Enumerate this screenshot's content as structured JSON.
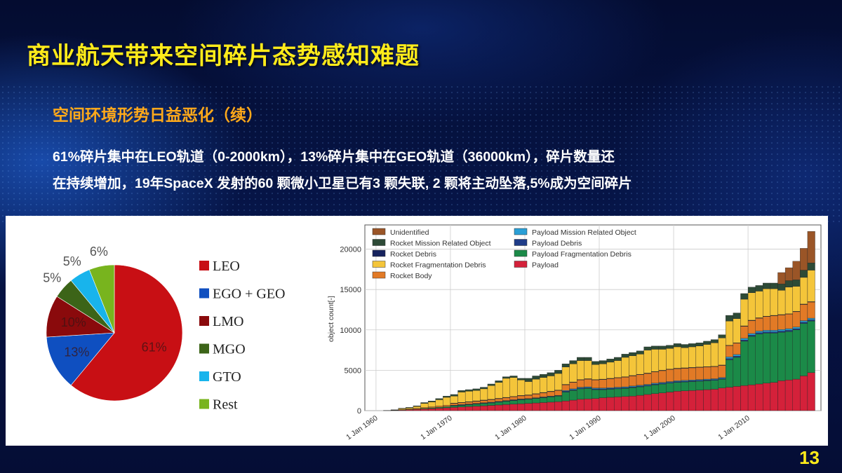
{
  "slide": {
    "title": "商业航天带来空间碎片态势感知难题",
    "subtitle": "空间环境形势日益恶化（续）",
    "body_line1": "61%碎片集中在LEO轨道（0-2000km），13%碎片集中在GEO轨道（36000km），碎片数量还",
    "body_line2": "在持续增加，19年SpaceX 发射的60 颗微小卫星已有3 颗失联, 2 颗将主动坠落,5%成为空间碎片",
    "page_number": "13",
    "colors": {
      "title": "#ffeb1a",
      "subtitle": "#ffa91a",
      "body": "#ffffff"
    }
  },
  "chart_data": [
    {
      "type": "pie",
      "slices": [
        {
          "label": "LEO",
          "value": 61,
          "data_label": "61%",
          "color": "#c80f14"
        },
        {
          "label": "EGO + GEO",
          "value": 13,
          "data_label": "13%",
          "color": "#0f4fc0"
        },
        {
          "label": "LMO",
          "value": 10,
          "data_label": "10%",
          "color": "#8a0a0c"
        },
        {
          "label": "MGO",
          "value": 5,
          "data_label": "5%",
          "color": "#3c6418"
        },
        {
          "label": "GTO",
          "value": 5,
          "data_label": "5%",
          "color": "#18b4ec"
        },
        {
          "label": "Rest",
          "value": 6,
          "data_label": "6%",
          "color": "#78b41e"
        }
      ],
      "legend": "right"
    },
    {
      "type": "bar",
      "stacked": true,
      "ylabel": "object count[-]",
      "ylim": [
        0,
        23000
      ],
      "yticks": [
        0,
        5000,
        10000,
        15000,
        20000
      ],
      "xticks": [
        "1 Jan 1960",
        "1 Jan 1970",
        "1 Jan 1980",
        "1 Jan 1990",
        "1 Jan 2000",
        "1 Jan 2010"
      ],
      "xtick_years": [
        1960,
        1970,
        1980,
        1990,
        2000,
        2010
      ],
      "xlim": [
        1958.5,
        2019.8
      ],
      "grid": true,
      "legend": "top-left",
      "legend_columns": [
        [
          "Unidentified",
          "Rocket Mission Related Object",
          "Rocket Debris",
          "Rocket Fragmentation Debris",
          "Rocket Body"
        ],
        [
          "Payload Mission Related Object",
          "Payload Debris",
          "Payload Fragmentation Debris",
          "Payload"
        ]
      ],
      "years_start": 1960,
      "series": [
        {
          "name": "Payload",
          "color": "#d4213a",
          "values": [
            0,
            10,
            30,
            60,
            100,
            150,
            200,
            250,
            300,
            350,
            400,
            450,
            500,
            550,
            600,
            650,
            700,
            750,
            800,
            850,
            900,
            950,
            1000,
            1050,
            1100,
            1200,
            1300,
            1400,
            1450,
            1500,
            1600,
            1650,
            1700,
            1750,
            1800,
            1900,
            2000,
            2100,
            2200,
            2300,
            2400,
            2450,
            2500,
            2550,
            2600,
            2650,
            2800,
            2900,
            3000,
            3100,
            3200,
            3300,
            3400,
            3500,
            3700,
            3800,
            3900,
            4300,
            4700
          ]
        },
        {
          "name": "Payload Fragmentation Debris",
          "color": "#1b8a48",
          "values": [
            0,
            0,
            0,
            20,
            30,
            50,
            80,
            100,
            120,
            150,
            180,
            200,
            220,
            250,
            280,
            300,
            350,
            400,
            450,
            500,
            500,
            550,
            600,
            650,
            700,
            1100,
            1200,
            1300,
            1300,
            1100,
            1000,
            1000,
            1000,
            1000,
            1050,
            1050,
            1050,
            1100,
            1100,
            1100,
            1100,
            1100,
            1100,
            1100,
            1100,
            1100,
            1100,
            3400,
            3600,
            5500,
            6000,
            6200,
            6200,
            6100,
            6000,
            6000,
            6100,
            6500,
            6400
          ]
        },
        {
          "name": "Payload Debris",
          "color": "#1f3c88",
          "values": [
            0,
            0,
            0,
            0,
            0,
            0,
            0,
            0,
            0,
            0,
            50,
            50,
            50,
            50,
            50,
            50,
            50,
            50,
            50,
            50,
            50,
            50,
            50,
            50,
            50,
            100,
            100,
            100,
            100,
            100,
            100,
            100,
            100,
            100,
            100,
            100,
            100,
            100,
            100,
            100,
            100,
            100,
            100,
            100,
            100,
            100,
            100,
            150,
            150,
            150,
            150,
            150,
            150,
            150,
            150,
            150,
            150,
            150,
            150
          ]
        },
        {
          "name": "Payload Mission Related Object",
          "color": "#2a9fd6",
          "values": [
            0,
            0,
            0,
            0,
            0,
            0,
            0,
            0,
            0,
            0,
            50,
            50,
            50,
            50,
            50,
            50,
            50,
            50,
            50,
            50,
            50,
            50,
            50,
            50,
            50,
            100,
            100,
            100,
            100,
            100,
            100,
            100,
            100,
            100,
            100,
            100,
            100,
            100,
            100,
            100,
            100,
            100,
            100,
            100,
            100,
            100,
            100,
            200,
            200,
            200,
            200,
            200,
            200,
            200,
            200,
            200,
            200,
            200,
            200
          ]
        },
        {
          "name": "Rocket Body",
          "color": "#e27a26",
          "values": [
            0,
            5,
            20,
            40,
            60,
            80,
            100,
            120,
            150,
            180,
            200,
            220,
            240,
            260,
            280,
            300,
            320,
            340,
            360,
            380,
            400,
            450,
            500,
            550,
            600,
            700,
            800,
            900,
            950,
            1000,
            1050,
            1100,
            1150,
            1200,
            1250,
            1300,
            1350,
            1400,
            1450,
            1500,
            1500,
            1500,
            1500,
            1500,
            1500,
            1500,
            1500,
            1400,
            1400,
            1500,
            1600,
            1600,
            1700,
            1800,
            1800,
            1800,
            1900,
            2000,
            2000
          ]
        },
        {
          "name": "Rocket Debris",
          "color": "#16235e",
          "values": [
            0,
            0,
            0,
            0,
            0,
            0,
            0,
            0,
            0,
            0,
            50,
            50,
            50,
            50,
            50,
            50,
            50,
            50,
            50,
            50,
            50,
            50,
            50,
            50,
            50,
            50,
            50,
            50,
            50,
            50,
            50,
            50,
            50,
            50,
            50,
            50,
            50,
            50,
            50,
            50,
            50,
            50,
            50,
            50,
            50,
            50,
            50,
            50,
            50,
            50,
            50,
            50,
            50,
            50,
            50,
            50,
            50,
            50,
            50
          ]
        },
        {
          "name": "Rocket Fragmentation Debris",
          "color": "#f4c53a",
          "values": [
            0,
            0,
            30,
            130,
            150,
            240,
            520,
            610,
            780,
            970,
            870,
            1280,
            1290,
            1290,
            1390,
            1700,
            1980,
            2360,
            2340,
            1920,
            1650,
            1800,
            1850,
            1900,
            2050,
            2150,
            2250,
            2350,
            2250,
            1850,
            1900,
            2000,
            2100,
            2400,
            2450,
            2500,
            2850,
            2750,
            2600,
            2550,
            2650,
            2500,
            2550,
            2600,
            2750,
            2900,
            3350,
            3000,
            3000,
            3300,
            3400,
            3300,
            3400,
            3300,
            3000,
            3300,
            3100,
            3300,
            3900
          ]
        },
        {
          "name": "Rocket Mission Related Object",
          "color": "#2d4a36",
          "values": [
            0,
            5,
            20,
            50,
            60,
            80,
            100,
            120,
            150,
            150,
            200,
            200,
            200,
            200,
            200,
            200,
            200,
            200,
            200,
            200,
            400,
            400,
            400,
            400,
            400,
            400,
            400,
            400,
            400,
            400,
            400,
            400,
            400,
            400,
            400,
            400,
            400,
            400,
            400,
            400,
            400,
            400,
            400,
            400,
            400,
            400,
            400,
            700,
            700,
            700,
            700,
            700,
            700,
            700,
            800,
            800,
            800,
            900,
            900
          ]
        },
        {
          "name": "Unidentified",
          "color": "#9a5527",
          "values": [
            0,
            0,
            0,
            0,
            0,
            0,
            0,
            0,
            0,
            0,
            0,
            0,
            0,
            0,
            0,
            0,
            0,
            0,
            0,
            0,
            0,
            0,
            0,
            0,
            0,
            0,
            0,
            0,
            0,
            0,
            0,
            0,
            0,
            0,
            0,
            0,
            0,
            0,
            0,
            0,
            0,
            0,
            0,
            0,
            0,
            0,
            0,
            0,
            0,
            0,
            0,
            0,
            0,
            0,
            1400,
            1600,
            2300,
            2700,
            3900
          ]
        }
      ]
    }
  ]
}
